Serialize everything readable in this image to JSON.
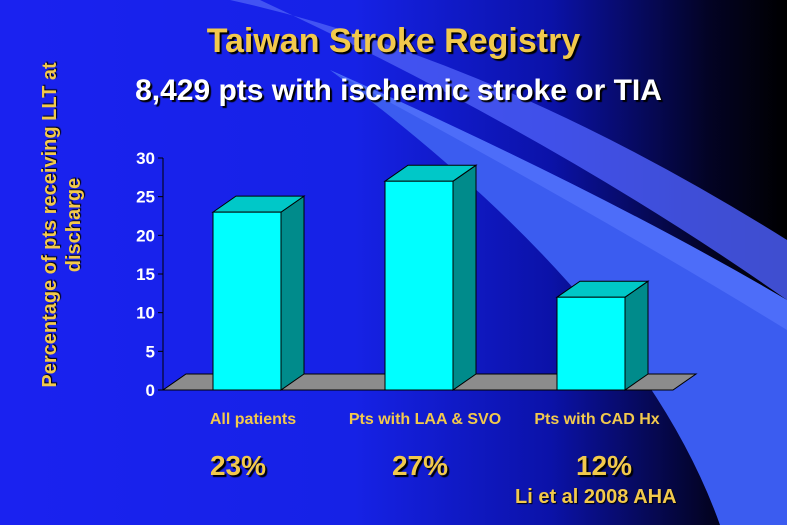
{
  "title": "Taiwan Stroke Registry",
  "subtitle": "8,429 pts with ischemic stroke or TIA",
  "percent_labels": [
    "23%",
    "27%",
    "12%"
  ],
  "citation": "Li et al  2008 AHA",
  "colors": {
    "bar_front": "#00ffff",
    "bar_side": "#008b8b",
    "bar_top": "#00c8c8",
    "floor": "#8c8c8c",
    "title": "#f2c94c",
    "background": "#1a22f0"
  },
  "chart_data": {
    "type": "bar",
    "title": "",
    "xlabel": "",
    "ylabel": "Percentage of pts receiving LLT at discharge",
    "categories": [
      "All patients",
      "Pts with LAA & SVO",
      "Pts with CAD Hx"
    ],
    "values": [
      23,
      27,
      12
    ],
    "ylim": [
      0,
      30
    ],
    "yticks": [
      0,
      5,
      10,
      15,
      20,
      25,
      30
    ],
    "grid": false,
    "legend": "none",
    "style": "3d"
  }
}
